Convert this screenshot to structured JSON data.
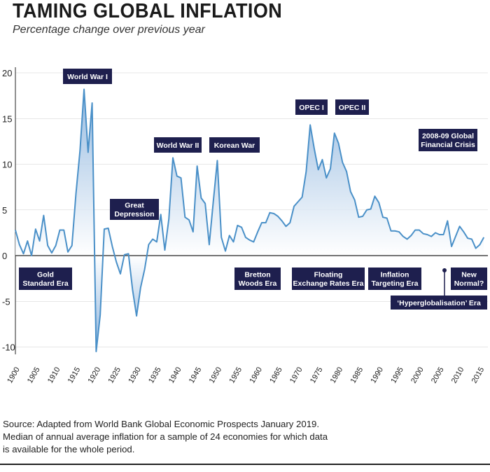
{
  "header": {
    "title": "TAMING GLOBAL INFLATION",
    "subtitle": "Percentage change over previous year"
  },
  "source": {
    "lines": [
      "Source: Adapted from World Bank Global Economic Prospects January 2019.",
      "Median of annual average inflation for a sample of 24 economies for which data",
      "is available for the whole period."
    ]
  },
  "colors": {
    "line": "#4a90c8",
    "fill_top": "#7aa8d8",
    "fill_bottom": "#ffffff",
    "label_bg": "#1e1f4e",
    "label_text": "#ffffff",
    "axis": "#222222",
    "grid": "#cfcfcf"
  },
  "chart_data": {
    "type": "area",
    "title": "TAMING GLOBAL INFLATION",
    "ylabel": "Percentage change over previous year",
    "xlim": [
      1900,
      2017
    ],
    "ylim": [
      -10,
      20
    ],
    "yticks": [
      20,
      15,
      10,
      5,
      0,
      -5,
      -10
    ],
    "ytick_labels": [
      "20",
      "15",
      "10",
      "5",
      "0",
      "-5",
      "-10"
    ],
    "xticks": [
      1900,
      1905,
      1910,
      1915,
      1920,
      1925,
      1930,
      1935,
      1940,
      1945,
      1950,
      1955,
      1960,
      1965,
      1970,
      1975,
      1980,
      1985,
      1990,
      1995,
      2000,
      2005,
      2010,
      2015
    ],
    "grid": "horizontal",
    "series": [
      {
        "name": "Median annual inflation",
        "x": [
          1900,
          1901,
          1902,
          1903,
          1904,
          1905,
          1906,
          1907,
          1908,
          1909,
          1910,
          1911,
          1912,
          1913,
          1914,
          1915,
          1916,
          1917,
          1918,
          1919,
          1920,
          1921,
          1922,
          1923,
          1924,
          1925,
          1926,
          1927,
          1928,
          1929,
          1930,
          1931,
          1932,
          1933,
          1934,
          1935,
          1936,
          1937,
          1938,
          1939,
          1940,
          1941,
          1942,
          1943,
          1944,
          1945,
          1946,
          1947,
          1948,
          1949,
          1950,
          1951,
          1952,
          1953,
          1954,
          1955,
          1956,
          1957,
          1958,
          1959,
          1960,
          1961,
          1962,
          1963,
          1964,
          1965,
          1966,
          1967,
          1968,
          1969,
          1970,
          1971,
          1972,
          1973,
          1974,
          1975,
          1976,
          1977,
          1978,
          1979,
          1980,
          1981,
          1982,
          1983,
          1984,
          1985,
          1986,
          1987,
          1988,
          1989,
          1990,
          1991,
          1992,
          1993,
          1994,
          1995,
          1996,
          1997,
          1998,
          1999,
          2000,
          2001,
          2002,
          2003,
          2004,
          2005,
          2006,
          2007,
          2008,
          2009,
          2010,
          2011,
          2012,
          2013,
          2014,
          2015,
          2016
        ],
        "values": [
          2.8,
          1.2,
          0.2,
          1.6,
          0.0,
          2.9,
          1.6,
          4.4,
          1.1,
          0.3,
          1.1,
          2.8,
          2.8,
          0.4,
          1.1,
          6.8,
          11.5,
          18.2,
          11.3,
          16.7,
          -10.5,
          -6.5,
          2.9,
          3.0,
          1.0,
          -0.7,
          -2.0,
          0.1,
          0.2,
          -3.7,
          -6.6,
          -3.5,
          -1.5,
          1.2,
          1.8,
          1.5,
          4.5,
          0.6,
          4.0,
          10.7,
          8.7,
          8.5,
          4.2,
          3.9,
          2.6,
          9.8,
          6.3,
          5.7,
          1.2,
          5.9,
          10.4,
          2.0,
          0.5,
          2.2,
          1.5,
          3.3,
          3.1,
          2.0,
          1.7,
          1.5,
          2.6,
          3.6,
          3.6,
          4.7,
          4.6,
          4.3,
          3.8,
          3.2,
          3.6,
          5.4,
          5.9,
          6.4,
          9.2,
          14.3,
          11.7,
          9.4,
          10.5,
          8.5,
          9.5,
          13.4,
          12.3,
          10.2,
          9.2,
          7.0,
          6.1,
          4.2,
          4.3,
          5.0,
          5.1,
          6.5,
          5.8,
          4.2,
          4.1,
          2.7,
          2.7,
          2.6,
          2.1,
          1.8,
          2.2,
          2.8,
          2.8,
          2.4,
          2.3,
          2.1,
          2.5,
          2.3,
          2.3,
          3.8,
          1.0,
          2.1,
          3.2,
          2.6,
          1.9,
          1.8,
          0.8,
          1.2,
          2.0
        ]
      }
    ],
    "annotations_above": [
      {
        "label": "World War I",
        "lines": [
          "World War I"
        ]
      },
      {
        "label": "Great Depression",
        "lines": [
          "Great",
          "Depression"
        ]
      },
      {
        "label": "World War II",
        "lines": [
          "World War II"
        ]
      },
      {
        "label": "Korean War",
        "lines": [
          "Korean War"
        ]
      },
      {
        "label": "OPEC I",
        "lines": [
          "OPEC I"
        ]
      },
      {
        "label": "OPEC II",
        "lines": [
          "OPEC II"
        ]
      },
      {
        "label": "2008-09 Global Financial Crisis",
        "lines": [
          "2008-09 Global",
          "Financial Crisis"
        ]
      }
    ],
    "eras": [
      {
        "label": "Gold Standard Era",
        "lines": [
          "Gold",
          "Standard Era"
        ]
      },
      {
        "label": "Bretton Woods Era",
        "lines": [
          "Bretton",
          "Woods Era"
        ]
      },
      {
        "label": "Floating Exchange Rates Era",
        "lines": [
          "Floating",
          "Exchange Rates Era"
        ]
      },
      {
        "label": "Inflation Targeting Era",
        "lines": [
          "Inflation",
          "Targeting Era"
        ]
      },
      {
        "label": "New Normal?",
        "lines": [
          "New",
          "Normal?"
        ]
      },
      {
        "label": "'Hyperglobalisation' Era",
        "lines": [
          "‘Hyperglobalisation’ Era"
        ]
      }
    ]
  }
}
